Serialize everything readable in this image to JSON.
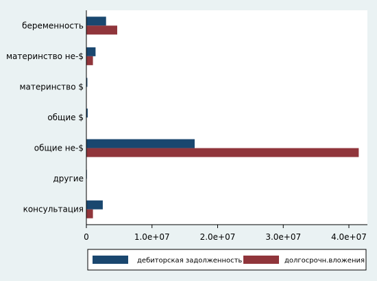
{
  "chart_data": {
    "type": "bar",
    "orientation": "horizontal",
    "title": "",
    "xlabel": "",
    "ylabel": "",
    "categories": [
      "беременность",
      "материнство не-$",
      "материнство $",
      "общие $",
      "общие не-$",
      "другие",
      "консультация"
    ],
    "series": [
      {
        "name": "дебиторская задолженность",
        "color": "#1a476f",
        "values": [
          3000000,
          1400000,
          150000,
          200000,
          16500000,
          80000,
          2500000
        ]
      },
      {
        "name": "долгосрочн.вложения",
        "color": "#90353b",
        "values": [
          4700000,
          1000000,
          50000,
          30000,
          41500000,
          0,
          1000000
        ]
      }
    ],
    "xlim": [
      0,
      43000000
    ],
    "xticks": [
      0,
      10000000,
      20000000,
      30000000,
      40000000
    ],
    "xtick_labels": [
      "0",
      "1.0e+07",
      "2.0e+07",
      "3.0e+07",
      "4.0e+07"
    ],
    "grid": false,
    "legend_position": "bottom"
  }
}
